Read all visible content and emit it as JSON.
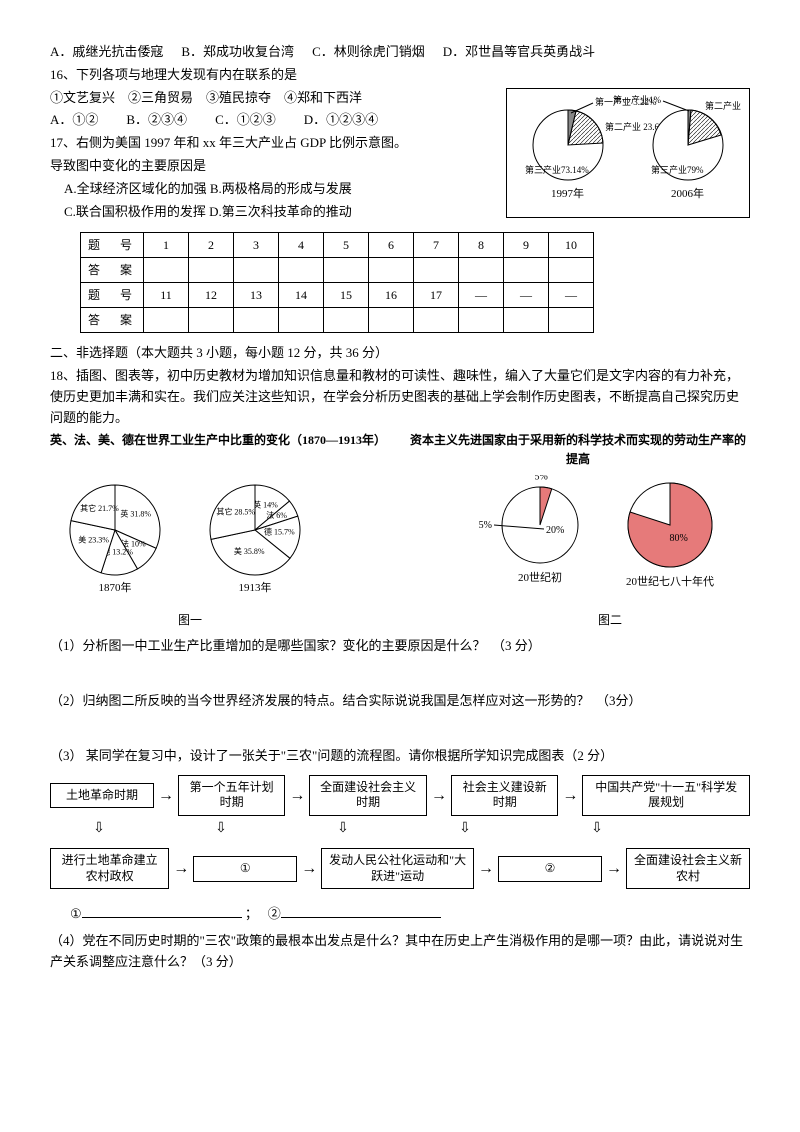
{
  "q15_opts": [
    "A．戚继光抗击倭寇",
    "B．郑成功收复台湾",
    "C．林则徐虎门销烟",
    "D．邓世昌等官兵英勇战斗"
  ],
  "q16": {
    "stem": "16、下列各项与地理大发现有内在联系的是",
    "items": "①文艺复兴　②三角贸易　③殖民掠夺　④郑和下西洋",
    "opts": [
      "A．①②",
      "B．②③④",
      "C．①②③",
      "D．①②③④"
    ]
  },
  "q17": {
    "stem": "17、右侧为美国 1997 年和 xx 年三大产业占 GDP 比例示意图。",
    "sub": "导致图中变化的主要原因是",
    "opts": [
      "A.全球经济区域化的加强",
      "B.两极格局的形成与发展",
      "C.联合国积极作用的发挥",
      "D.第三次科技革命的推动"
    ]
  },
  "pies_right": {
    "left": {
      "year": "1997年",
      "labels": [
        "第一产业 3.22%",
        "第二产业 23.64%",
        "第三产业73.14%"
      ],
      "angles": [
        12,
        85,
        263
      ]
    },
    "right": {
      "year": "2006年",
      "labels": [
        "第一产业1%",
        "第二产业 20%",
        "第三产业79%"
      ],
      "angles": [
        4,
        72,
        284
      ]
    }
  },
  "ans_table": {
    "r1": [
      "题　号",
      "1",
      "2",
      "3",
      "4",
      "5",
      "6",
      "7",
      "8",
      "9",
      "10"
    ],
    "r2": [
      "答　案",
      "",
      "",
      "",
      "",
      "",
      "",
      "",
      "",
      "",
      ""
    ],
    "r3": [
      "题　号",
      "11",
      "12",
      "13",
      "14",
      "15",
      "16",
      "17",
      "—",
      "—",
      "—"
    ],
    "r4": [
      "答　案",
      "",
      "",
      "",
      "",
      "",
      "",
      "",
      "",
      "",
      ""
    ]
  },
  "sec2_title": "二、非选择题（本大题共 3 小题，每小题 12 分，共 36 分）",
  "q18_intro": "18、插图、图表等，初中历史教材为增加知识信息量和教材的可读性、趣味性，编入了大量它们是文字内容的有力补充，使历史更加丰满和实在。我们应关注这些知识，在学会分析历史图表的基础上学会制作历史图表，不断提高自己探究历史问题的能力。",
  "fig1_title": "英、法、美、德在世界工业生产中比重的变化（1870—1913年）",
  "fig2_title": "资本主义先进国家由于采用新的科学技术而实现的劳动生产率的提高",
  "pie1870": {
    "year": "1870年",
    "segs": [
      {
        "label": "英 31.8%",
        "ang": 114
      },
      {
        "label": "法 10%",
        "ang": 36
      },
      {
        "label": "德 13.2%",
        "ang": 48
      },
      {
        "label": "美 23.3%",
        "ang": 84
      },
      {
        "label": "其它 21.7%",
        "ang": 78
      }
    ]
  },
  "pie1913": {
    "year": "1913年",
    "segs": [
      {
        "label": "英 14%",
        "ang": 50
      },
      {
        "label": "法 6%",
        "ang": 22
      },
      {
        "label": "德 15.7%",
        "ang": 57
      },
      {
        "label": "美 35.8%",
        "ang": 129
      },
      {
        "label": "其它 28.5%",
        "ang": 102
      }
    ]
  },
  "prod": {
    "left": {
      "label": "20世纪初",
      "red": "5%",
      "white": "20%",
      "redang": 18
    },
    "right": {
      "label": "20世纪七八十年代",
      "red": "80%",
      "redang": 288
    }
  },
  "fig1_cap": "图一",
  "fig2_cap": "图二",
  "q18_1": "（1）分析图一中工业生产比重增加的是哪些国家？变化的主要原因是什么？　（3 分）",
  "q18_2": "（2）归纳图二所反映的当今世界经济发展的特点。结合实际说说我国是怎样应对这一形势的？　（3分）",
  "q18_3": "（3） 某同学在复习中，设计了一张关于\"三农\"问题的流程图。请你根据所学知识完成图表（2 分）",
  "flow_top": [
    "土地革命时期",
    "第一个五年计划时期",
    "全面建设社会主义时期",
    "社会主义建设新时期",
    "中国共产党\"十一五\"科学发展规划"
  ],
  "flow_bot": [
    "进行土地革命建立农村政权",
    "①",
    "发动人民公社化运动和\"大跃进\"运动",
    "②",
    "全面建设社会主义新农村"
  ],
  "fill": {
    "a": "①",
    "b": "②",
    "sep": "；"
  },
  "q18_4": "（4）党在不同历史时期的\"三农\"政策的最根本出发点是什么？其中在历史上产生消极作用的是哪一项？由此，请说说对生产关系调整应注意什么？（3 分）"
}
